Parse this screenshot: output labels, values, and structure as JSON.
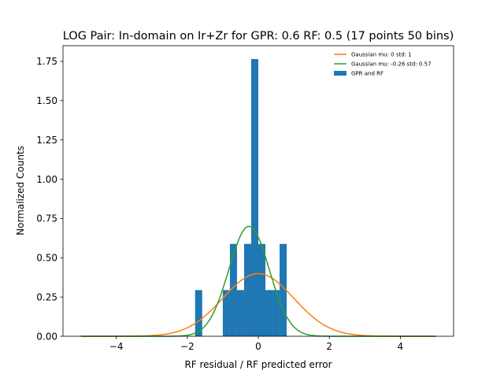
{
  "chart_data": {
    "type": "bar",
    "title": "LOG Pair: In-domain on Ir+Zr for GPR: 0.6 RF: 0.5 (17 points 50 bins)",
    "xlabel": "RF residual / RF predicted error",
    "ylabel": "Normalized Counts",
    "xlim": [
      -5.5,
      5.5
    ],
    "ylim": [
      0,
      1.85
    ],
    "xticks": [
      -4,
      -2,
      0,
      2,
      4
    ],
    "xtick_labels": [
      "−4",
      "−2",
      "0",
      "2",
      "4"
    ],
    "yticks": [
      0.0,
      0.25,
      0.5,
      0.75,
      1.0,
      1.25,
      1.5,
      1.75
    ],
    "ytick_labels": [
      "0.00",
      "0.25",
      "0.50",
      "0.75",
      "1.00",
      "1.25",
      "1.50",
      "1.75"
    ],
    "grid": false,
    "legend_position": "top-right",
    "histogram": {
      "name": "GPR and RF",
      "color": "#1f77b4",
      "bins": [
        {
          "left": -1.78,
          "right": -1.58,
          "value": 0.294
        },
        {
          "left": -1.0,
          "right": -0.8,
          "value": 0.294
        },
        {
          "left": -0.8,
          "right": -0.6,
          "value": 0.588
        },
        {
          "left": -0.6,
          "right": -0.4,
          "value": 0.294
        },
        {
          "left": -0.4,
          "right": -0.2,
          "value": 0.588
        },
        {
          "left": -0.2,
          "right": 0.0,
          "value": 1.765
        },
        {
          "left": 0.0,
          "right": 0.2,
          "value": 0.588
        },
        {
          "left": 0.2,
          "right": 0.4,
          "value": 0.294
        },
        {
          "left": 0.4,
          "right": 0.6,
          "value": 0.294
        },
        {
          "left": 0.6,
          "right": 0.8,
          "value": 0.588
        }
      ]
    },
    "series": [
      {
        "name": "Gaussian mu: 0 std: 1",
        "type": "line",
        "color": "#ff7f0e",
        "mu": 0,
        "std": 1,
        "x_range": [
          -5,
          5
        ]
      },
      {
        "name": "Gaussian mu: -0.26 std: 0.57",
        "type": "line",
        "color": "#2ca02c",
        "mu": -0.26,
        "std": 0.57,
        "x_range": [
          -5,
          5
        ]
      }
    ]
  }
}
